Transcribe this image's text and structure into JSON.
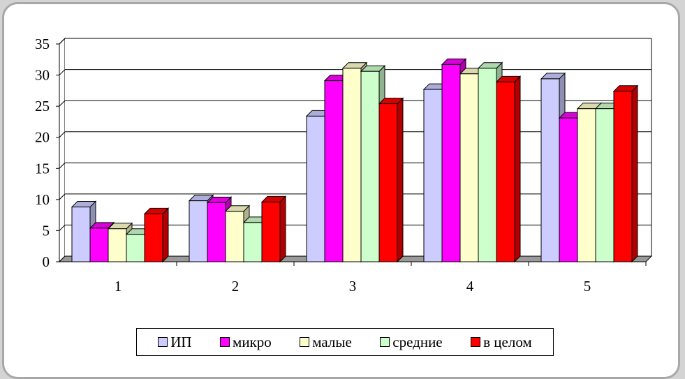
{
  "chart_data": {
    "type": "bar",
    "categories": [
      "1",
      "2",
      "3",
      "4",
      "5"
    ],
    "series": [
      {
        "name": "ИП",
        "color": "#ccccff",
        "values": [
          8.8,
          9.8,
          23.4,
          27.7,
          29.4
        ]
      },
      {
        "name": "микро",
        "color": "#ff00ff",
        "values": [
          5.4,
          9.5,
          29.1,
          31.7,
          23.1
        ]
      },
      {
        "name": "малые",
        "color": "#ffffcc",
        "values": [
          5.3,
          8.1,
          31.1,
          30.2,
          24.6
        ]
      },
      {
        "name": "средние",
        "color": "#ccffcc",
        "values": [
          4.4,
          6.3,
          30.6,
          31.1,
          24.6
        ]
      },
      {
        "name": "в целом",
        "color": "#ff0000",
        "values": [
          7.7,
          9.6,
          25.4,
          28.9,
          27.4
        ]
      }
    ],
    "ylim": [
      0,
      35
    ],
    "yticks": [
      "0",
      "5",
      "10",
      "15",
      "20",
      "25",
      "30",
      "35"
    ],
    "grid": true,
    "legend_position": "bottom"
  }
}
